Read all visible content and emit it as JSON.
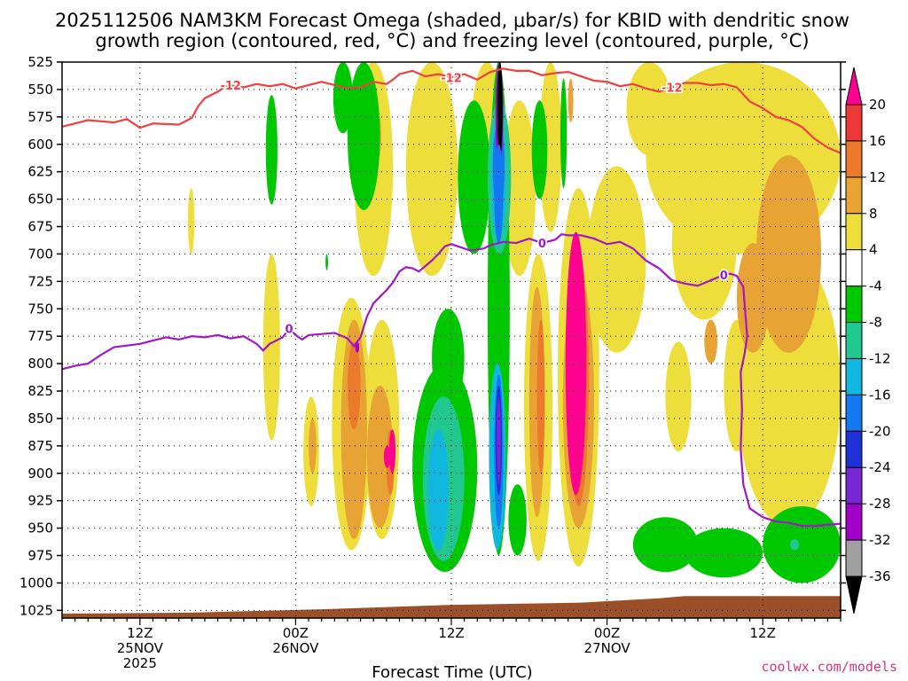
{
  "chart_data": {
    "type": "heatmap",
    "title_line1": "2025112506 NAM3KM Forecast Omega (shaded, μbar/s) for KBID with dendritic snow",
    "title_line2": "growth region (contoured, red, °C) and freezing level (contoured, purple, °C)",
    "xlabel": "Forecast Time (UTC)",
    "credit": "coolwx.com/models",
    "x_range_hours": [
      0,
      60
    ],
    "y_levels": [
      "525",
      "550",
      "575",
      "600",
      "625",
      "650",
      "675",
      "700",
      "725",
      "750",
      "775",
      "800",
      "825",
      "850",
      "875",
      "900",
      "925",
      "950",
      "975",
      "1000",
      "1025"
    ],
    "x_ticks": [
      {
        "hour": 6,
        "lines": [
          "12Z",
          "25NOV",
          "2025"
        ]
      },
      {
        "hour": 18,
        "lines": [
          "00Z",
          "26NOV"
        ]
      },
      {
        "hour": 30,
        "lines": [
          "12Z"
        ]
      },
      {
        "hour": 42,
        "lines": [
          "00Z",
          "27NOV"
        ]
      },
      {
        "hour": 54,
        "lines": [
          "12Z"
        ]
      }
    ],
    "colorbar": {
      "labels": [
        "20",
        "16",
        "12",
        "8",
        "4",
        "-4",
        "-8",
        "-12",
        "-16",
        "-20",
        "-24",
        "-28",
        "-32",
        "-36"
      ],
      "colors": [
        "#ff0090",
        "#ee3838",
        "#ed7a2a",
        "#e7a333",
        "#eede3c",
        "#ffffff",
        "#00c800",
        "#20c890",
        "#10b8e0",
        "#1478f0",
        "#1f32d8",
        "#7828d2",
        "#a000c8",
        "#a0a0a0",
        "#000000"
      ]
    },
    "series": [
      {
        "name": "dendritic growth region",
        "contour_label": "-12",
        "color": "#f04040",
        "points": [
          [
            0,
            584
          ],
          [
            2,
            578
          ],
          [
            4,
            580
          ],
          [
            5,
            577
          ],
          [
            6,
            585
          ],
          [
            7,
            581
          ],
          [
            9,
            582
          ],
          [
            10,
            576
          ],
          [
            10.5,
            565
          ],
          [
            11,
            558
          ],
          [
            12,
            552
          ],
          [
            12.5,
            548
          ],
          [
            13,
            546
          ],
          [
            14,
            548
          ],
          [
            15,
            545
          ],
          [
            16,
            547
          ],
          [
            17,
            545
          ],
          [
            18,
            549
          ],
          [
            19,
            546
          ],
          [
            20,
            543
          ],
          [
            21,
            546
          ],
          [
            22,
            549
          ],
          [
            23,
            548
          ],
          [
            24,
            543
          ],
          [
            25,
            545
          ],
          [
            25.5,
            541
          ],
          [
            26,
            536
          ],
          [
            27,
            533
          ],
          [
            28,
            538
          ],
          [
            29,
            536
          ],
          [
            30,
            539
          ],
          [
            31,
            536
          ],
          [
            32,
            541
          ],
          [
            33,
            534
          ],
          [
            34,
            531
          ],
          [
            35,
            533
          ],
          [
            36,
            533
          ],
          [
            37,
            537
          ],
          [
            38,
            535
          ],
          [
            39,
            534
          ],
          [
            40,
            538
          ],
          [
            41,
            542
          ],
          [
            42,
            543
          ],
          [
            43,
            547
          ],
          [
            44,
            545
          ],
          [
            45,
            549
          ],
          [
            46,
            552
          ],
          [
            47,
            548
          ],
          [
            48,
            544
          ],
          [
            49,
            544
          ],
          [
            50,
            546
          ],
          [
            51,
            545
          ],
          [
            52,
            548
          ],
          [
            53,
            561
          ],
          [
            54,
            567
          ],
          [
            55,
            575
          ],
          [
            56,
            578
          ],
          [
            57,
            584
          ],
          [
            58,
            595
          ],
          [
            59,
            603
          ],
          [
            60,
            608
          ]
        ]
      },
      {
        "name": "freezing level",
        "contour_label": "0",
        "color": "#a018c8",
        "points": [
          [
            0,
            805
          ],
          [
            1,
            802
          ],
          [
            2,
            800
          ],
          [
            3,
            792
          ],
          [
            4,
            785
          ],
          [
            6,
            782
          ],
          [
            7,
            779
          ],
          [
            8,
            776
          ],
          [
            9,
            778
          ],
          [
            10,
            775
          ],
          [
            11,
            776
          ],
          [
            12,
            774
          ],
          [
            13,
            777
          ],
          [
            14,
            775
          ],
          [
            15,
            782
          ],
          [
            15.5,
            788
          ],
          [
            16,
            782
          ],
          [
            17,
            776
          ],
          [
            17.5,
            768
          ],
          [
            18,
            774
          ],
          [
            18.5,
            778
          ],
          [
            19,
            774
          ],
          [
            20,
            773
          ],
          [
            21,
            772
          ],
          [
            22,
            777
          ],
          [
            22.5,
            784
          ],
          [
            23,
            776
          ],
          [
            23.5,
            757
          ],
          [
            24,
            745
          ],
          [
            25,
            733
          ],
          [
            25.5,
            726
          ],
          [
            26,
            716
          ],
          [
            26.5,
            712
          ],
          [
            27,
            713
          ],
          [
            27.5,
            716
          ],
          [
            28,
            711
          ],
          [
            28.5,
            706
          ],
          [
            29,
            700
          ],
          [
            29.5,
            693
          ],
          [
            30,
            691
          ],
          [
            31,
            695
          ],
          [
            31.5,
            697
          ],
          [
            32,
            696
          ],
          [
            32.5,
            695
          ],
          [
            33,
            692
          ],
          [
            34,
            689
          ],
          [
            35,
            690
          ],
          [
            35.5,
            688
          ],
          [
            36,
            686
          ],
          [
            37,
            690
          ],
          [
            38,
            687
          ],
          [
            38.5,
            682
          ],
          [
            39,
            683
          ],
          [
            40,
            683
          ],
          [
            41,
            686
          ],
          [
            42,
            691
          ],
          [
            43,
            689
          ],
          [
            44,
            695
          ],
          [
            45,
            706
          ],
          [
            46,
            713
          ],
          [
            47,
            724
          ],
          [
            48,
            727
          ],
          [
            49,
            729
          ],
          [
            50,
            724
          ],
          [
            51,
            719
          ],
          [
            51.5,
            718
          ],
          [
            52,
            720
          ],
          [
            52.5,
            730
          ],
          [
            52.8,
            775
          ],
          [
            52.6,
            791
          ],
          [
            52.3,
            808
          ],
          [
            52.4,
            842
          ],
          [
            52.3,
            878
          ],
          [
            52.5,
            910
          ],
          [
            53,
            932
          ],
          [
            54,
            940
          ],
          [
            55,
            944
          ],
          [
            56,
            945
          ],
          [
            57,
            948
          ],
          [
            58,
            948
          ],
          [
            59,
            947
          ],
          [
            60,
            946
          ]
        ]
      }
    ]
  }
}
